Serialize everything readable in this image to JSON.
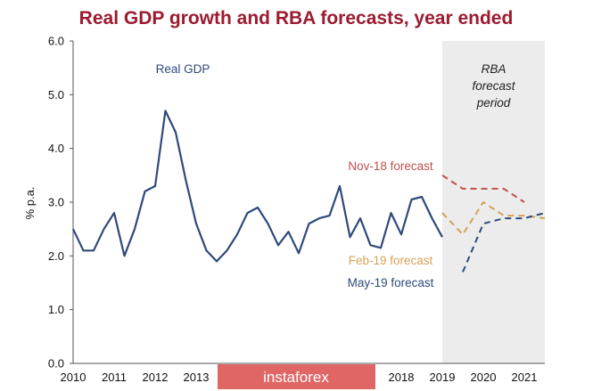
{
  "colors": {
    "title": "#9b1b30",
    "gdp": "#2e4a7b",
    "nov18": "#c0504d",
    "feb19": "#d4a256",
    "may19": "#2e4a7b",
    "shade": "#ececec",
    "watermark_bg": "#e06666"
  },
  "watermark": {
    "text": "instaforex"
  },
  "chart_data": {
    "type": "line",
    "title": "Real GDP growth and RBA forecasts, year ended",
    "ylabel": "% p.a.",
    "xlabel": "",
    "ylim": [
      0,
      6
    ],
    "yticks": [
      "0.0",
      "1.0",
      "2.0",
      "3.0",
      "4.0",
      "5.0",
      "6.0"
    ],
    "xlim": [
      2010,
      2021.5
    ],
    "xticks": [
      "2010",
      "2011",
      "2012",
      "2013",
      "2018",
      "2019",
      "2020",
      "2021"
    ],
    "shaded_region": {
      "x": [
        2019,
        2021.5
      ],
      "label_lines": [
        "RBA",
        "forecast",
        "period"
      ]
    },
    "grid": false,
    "series": [
      {
        "name": "Real GDP",
        "style": "solid",
        "x": [
          2010.0,
          2010.25,
          2010.5,
          2010.75,
          2011.0,
          2011.25,
          2011.5,
          2011.75,
          2012.0,
          2012.25,
          2012.5,
          2012.75,
          2013.0,
          2013.25,
          2013.5,
          2013.75,
          2014.0,
          2014.25,
          2014.5,
          2014.75,
          2015.0,
          2015.25,
          2015.5,
          2015.75,
          2016.0,
          2016.25,
          2016.5,
          2016.75,
          2017.0,
          2017.25,
          2017.5,
          2017.75,
          2018.0,
          2018.25,
          2018.5,
          2018.75,
          2019.0
        ],
        "y": [
          2.5,
          2.1,
          2.1,
          2.5,
          2.8,
          2.0,
          2.5,
          3.2,
          3.3,
          4.7,
          4.3,
          3.4,
          2.6,
          2.1,
          1.9,
          2.1,
          2.4,
          2.8,
          2.9,
          2.6,
          2.2,
          2.45,
          2.05,
          2.6,
          2.7,
          2.75,
          3.3,
          2.35,
          2.7,
          2.2,
          2.15,
          2.8,
          2.4,
          3.05,
          3.1,
          2.7,
          2.35
        ]
      },
      {
        "name": "Nov-18 forecast",
        "style": "dashed",
        "x": [
          2019.0,
          2019.5,
          2020.0,
          2020.5,
          2021.0
        ],
        "y": [
          3.5,
          3.25,
          3.25,
          3.25,
          3.0
        ]
      },
      {
        "name": "Feb-19 forecast",
        "style": "dashed",
        "x": [
          2019.0,
          2019.5,
          2020.0,
          2020.5,
          2021.0,
          2021.5
        ],
        "y": [
          2.8,
          2.4,
          3.0,
          2.75,
          2.75,
          2.7
        ]
      },
      {
        "name": "May-19 forecast",
        "style": "dashed",
        "x": [
          2019.5,
          2020.0,
          2020.5,
          2021.0,
          2021.5
        ],
        "y": [
          1.7,
          2.6,
          2.7,
          2.7,
          2.8
        ]
      }
    ]
  }
}
